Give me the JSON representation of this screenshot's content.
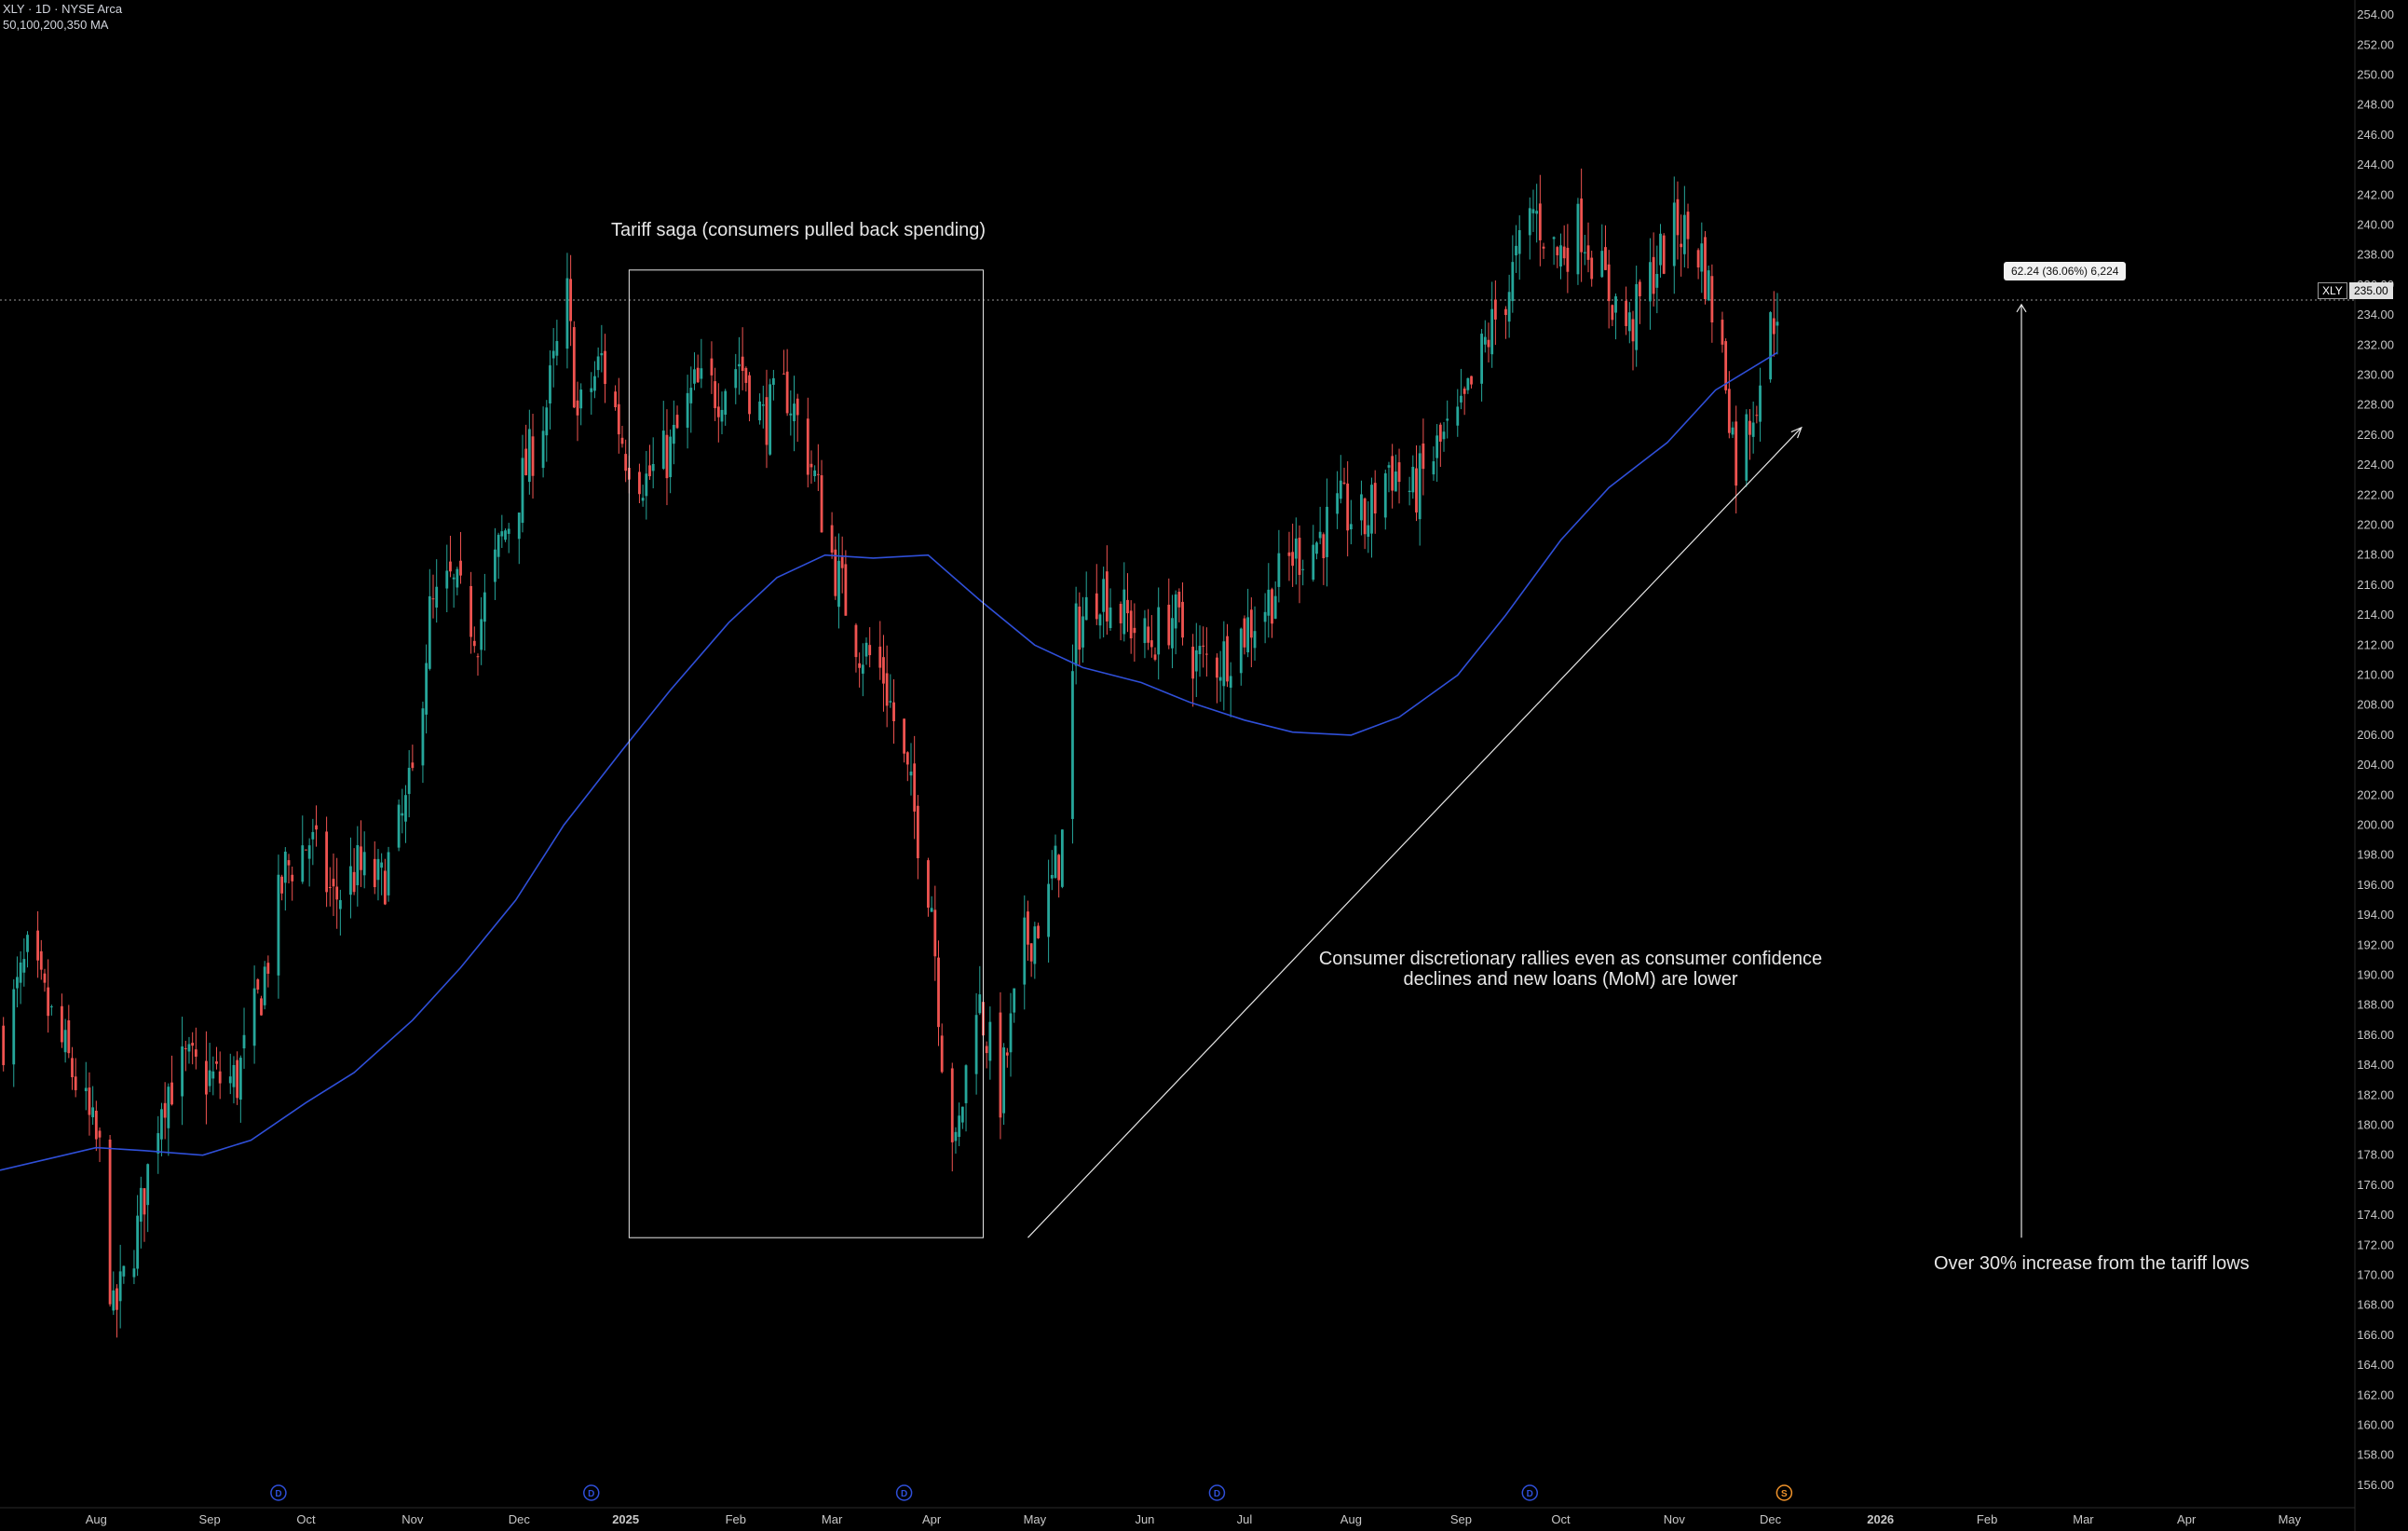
{
  "header": {
    "symbol_line": "XLY · 1D · NYSE Arca",
    "ma_line": "50,100,200,350 MA"
  },
  "annotations": {
    "tariff_box_label": "Tariff saga (consumers pulled back spending)",
    "rally_line1": "Consumer discretionary rallies even as consumer confidence",
    "rally_line2": "declines and new loans (MoM) are lower",
    "increase_label": "Over 30% increase from the tariff lows",
    "measure_label": "62.24 (36.06%) 6,224"
  },
  "price_tag": {
    "symbol": "XLY",
    "value": "235.00"
  },
  "colors": {
    "background": "#000000",
    "up_candle": "#26a69a",
    "down_candle": "#ef5350",
    "ma_line": "#2f4fd8",
    "dividend_marker": "#2f4fd8",
    "split_marker": "#f0932b",
    "annotation": "#e6e6e6"
  },
  "event_markers": [
    {
      "label": "D",
      "date": "2024-09-23",
      "kind": "dividend"
    },
    {
      "label": "D",
      "date": "2024-12-23",
      "kind": "dividend"
    },
    {
      "label": "D",
      "date": "2025-03-24",
      "kind": "dividend"
    },
    {
      "label": "D",
      "date": "2025-06-23",
      "kind": "dividend"
    },
    {
      "label": "D",
      "date": "2025-09-22",
      "kind": "dividend"
    },
    {
      "label": "S",
      "date": "2025-12-05",
      "kind": "split"
    }
  ],
  "chart_data": {
    "type": "candlestick",
    "symbol": "XLY",
    "timeframe": "1D",
    "exchange": "NYSE Arca",
    "y_axis_ticks": [
      "254.00",
      "252.00",
      "250.00",
      "248.00",
      "246.00",
      "244.00",
      "242.00",
      "240.00",
      "238.00",
      "236.00",
      "234.00",
      "232.00",
      "230.00",
      "228.00",
      "226.00",
      "224.00",
      "222.00",
      "220.00",
      "218.00",
      "216.00",
      "214.00",
      "212.00",
      "210.00",
      "208.00",
      "206.00",
      "204.00",
      "202.00",
      "200.00",
      "198.00",
      "196.00",
      "194.00",
      "192.00",
      "190.00",
      "188.00",
      "186.00",
      "184.00",
      "182.00",
      "180.00",
      "178.00",
      "176.00",
      "174.00",
      "172.00",
      "170.00",
      "168.00",
      "166.00",
      "164.00",
      "162.00",
      "160.00",
      "158.00",
      "156.00"
    ],
    "ylim": [
      154.5,
      255
    ],
    "x_axis_ticks": [
      {
        "label": "Aug",
        "date": "2024-08-01"
      },
      {
        "label": "Sep",
        "date": "2024-09-03"
      },
      {
        "label": "Oct",
        "date": "2024-10-01"
      },
      {
        "label": "Nov",
        "date": "2024-11-01"
      },
      {
        "label": "Dec",
        "date": "2024-12-02"
      },
      {
        "label": "2025",
        "date": "2025-01-02"
      },
      {
        "label": "Feb",
        "date": "2025-02-03"
      },
      {
        "label": "Mar",
        "date": "2025-03-03"
      },
      {
        "label": "Apr",
        "date": "2025-04-01"
      },
      {
        "label": "May",
        "date": "2025-05-01"
      },
      {
        "label": "Jun",
        "date": "2025-06-02"
      },
      {
        "label": "Jul",
        "date": "2025-07-01"
      },
      {
        "label": "Aug",
        "date": "2025-08-01"
      },
      {
        "label": "Sep",
        "date": "2025-09-02"
      },
      {
        "label": "Oct",
        "date": "2025-10-01"
      },
      {
        "label": "Nov",
        "date": "2025-11-03"
      },
      {
        "label": "Dec",
        "date": "2025-12-01"
      },
      {
        "label": "2026",
        "date": "2026-01-02"
      },
      {
        "label": "Feb",
        "date": "2026-02-02"
      },
      {
        "label": "Mar",
        "date": "2026-03-02"
      },
      {
        "label": "Apr",
        "date": "2026-04-01"
      },
      {
        "label": "May",
        "date": "2026-05-01"
      }
    ],
    "xlim": [
      "2024-07-04",
      "2026-05-20"
    ],
    "price_path": [
      [
        "2024-07-05",
        186
      ],
      [
        "2024-07-12",
        191
      ],
      [
        "2024-07-19",
        187
      ],
      [
        "2024-07-26",
        183
      ],
      [
        "2024-08-02",
        178
      ],
      [
        "2024-08-06",
        167
      ],
      [
        "2024-08-13",
        173
      ],
      [
        "2024-08-20",
        182
      ],
      [
        "2024-08-27",
        184
      ],
      [
        "2024-09-04",
        183
      ],
      [
        "2024-09-11",
        183
      ],
      [
        "2024-09-18",
        189
      ],
      [
        "2024-09-25",
        197
      ],
      [
        "2024-10-02",
        199
      ],
      [
        "2024-10-09",
        195
      ],
      [
        "2024-10-16",
        197
      ],
      [
        "2024-10-23",
        196
      ],
      [
        "2024-10-30",
        201
      ],
      [
        "2024-11-01",
        203
      ],
      [
        "2024-11-06",
        214
      ],
      [
        "2024-11-12",
        216
      ],
      [
        "2024-11-20",
        213
      ],
      [
        "2024-11-27",
        219
      ],
      [
        "2024-12-03",
        223
      ],
      [
        "2024-12-10",
        228
      ],
      [
        "2024-12-16",
        235
      ],
      [
        "2024-12-19",
        227
      ],
      [
        "2024-12-26",
        231
      ],
      [
        "2025-01-02",
        225
      ],
      [
        "2025-01-08",
        223
      ],
      [
        "2025-01-15",
        225
      ],
      [
        "2025-01-22",
        229
      ],
      [
        "2025-01-29",
        229
      ],
      [
        "2025-02-04",
        231
      ],
      [
        "2025-02-11",
        227
      ],
      [
        "2025-02-18",
        229
      ],
      [
        "2025-02-25",
        224
      ],
      [
        "2025-03-04",
        217
      ],
      [
        "2025-03-11",
        212
      ],
      [
        "2025-03-18",
        210
      ],
      [
        "2025-03-25",
        203
      ],
      [
        "2025-04-01",
        195
      ],
      [
        "2025-04-04",
        185
      ],
      [
        "2025-04-08",
        178
      ],
      [
        "2025-04-14",
        189
      ],
      [
        "2025-04-21",
        182
      ],
      [
        "2025-04-28",
        192
      ],
      [
        "2025-05-05",
        195
      ],
      [
        "2025-05-09",
        199
      ],
      [
        "2025-05-13",
        213
      ],
      [
        "2025-05-20",
        216
      ],
      [
        "2025-05-27",
        214
      ],
      [
        "2025-06-03",
        212
      ],
      [
        "2025-06-10",
        214
      ],
      [
        "2025-06-17",
        211
      ],
      [
        "2025-06-24",
        211
      ],
      [
        "2025-07-01",
        213
      ],
      [
        "2025-07-08",
        215
      ],
      [
        "2025-07-15",
        218
      ],
      [
        "2025-07-22",
        219
      ],
      [
        "2025-07-29",
        221
      ],
      [
        "2025-08-05",
        220
      ],
      [
        "2025-08-12",
        224
      ],
      [
        "2025-08-19",
        222
      ],
      [
        "2025-08-26",
        225
      ],
      [
        "2025-09-02",
        227
      ],
      [
        "2025-09-09",
        232
      ],
      [
        "2025-09-16",
        236
      ],
      [
        "2025-09-23",
        241
      ],
      [
        "2025-09-30",
        238
      ],
      [
        "2025-10-07",
        240
      ],
      [
        "2025-10-14",
        236
      ],
      [
        "2025-10-21",
        233
      ],
      [
        "2025-10-28",
        237
      ],
      [
        "2025-11-04",
        240
      ],
      [
        "2025-11-11",
        238
      ],
      [
        "2025-11-18",
        230
      ],
      [
        "2025-11-21",
        224
      ],
      [
        "2025-11-26",
        228
      ],
      [
        "2025-12-03",
        235
      ]
    ],
    "series": [
      {
        "name": "350 MA",
        "points": [
          [
            "2024-07-04",
            177.0
          ],
          [
            "2024-08-01",
            178.5
          ],
          [
            "2024-08-15",
            178.3
          ],
          [
            "2024-09-01",
            178.0
          ],
          [
            "2024-09-15",
            179.0
          ],
          [
            "2024-10-01",
            181.5
          ],
          [
            "2024-10-15",
            183.5
          ],
          [
            "2024-11-01",
            187.0
          ],
          [
            "2024-11-15",
            190.5
          ],
          [
            "2024-12-01",
            195.0
          ],
          [
            "2024-12-15",
            200.0
          ],
          [
            "2025-01-01",
            205.0
          ],
          [
            "2025-01-15",
            209.0
          ],
          [
            "2025-02-01",
            213.5
          ],
          [
            "2025-02-15",
            216.5
          ],
          [
            "2025-03-01",
            218.0
          ],
          [
            "2025-03-15",
            217.8
          ],
          [
            "2025-03-31",
            218.0
          ],
          [
            "2025-04-15",
            215.0
          ],
          [
            "2025-05-01",
            212.0
          ],
          [
            "2025-05-15",
            210.5
          ],
          [
            "2025-06-01",
            209.5
          ],
          [
            "2025-06-15",
            208.2
          ],
          [
            "2025-07-01",
            207.0
          ],
          [
            "2025-07-15",
            206.2
          ],
          [
            "2025-08-01",
            206.0
          ],
          [
            "2025-08-15",
            207.2
          ],
          [
            "2025-09-01",
            210.0
          ],
          [
            "2025-09-15",
            214.0
          ],
          [
            "2025-10-01",
            219.0
          ],
          [
            "2025-10-15",
            222.5
          ],
          [
            "2025-11-01",
            225.5
          ],
          [
            "2025-11-15",
            229.0
          ],
          [
            "2025-12-03",
            231.5
          ]
        ]
      }
    ],
    "last_price": 235.0,
    "drawings": {
      "tariff_box": {
        "from": "2025-01-03",
        "to": "2025-04-16",
        "low": 172.5,
        "high": 237.0
      },
      "trend_arrow": {
        "from_date": "2025-04-29",
        "from_price": 172.5,
        "to_date": "2025-12-10",
        "to_price": 226.5
      },
      "measure_arrow": {
        "date": "2026-02-12",
        "from_price": 172.5,
        "to_price": 234.7
      }
    }
  }
}
